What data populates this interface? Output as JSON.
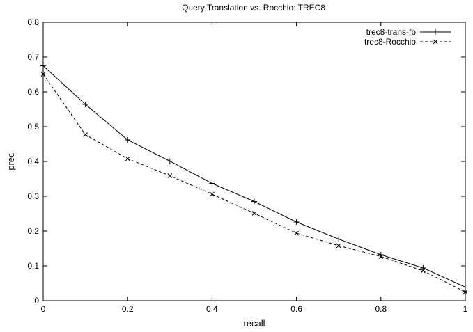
{
  "chart_data": {
    "type": "line",
    "title": "Query Translation vs. Rocchio: TREC8",
    "xlabel": "recall",
    "ylabel": "prec",
    "xlim": [
      0,
      1
    ],
    "ylim": [
      0,
      0.8
    ],
    "x_ticks": [
      "0",
      "0.2",
      "0.4",
      "0.6",
      "0.8",
      "1"
    ],
    "y_ticks": [
      "0",
      "0.1",
      "0.2",
      "0.3",
      "0.4",
      "0.5",
      "0.6",
      "0.7",
      "0.8"
    ],
    "x": [
      0,
      0.1,
      0.2,
      0.3,
      0.4,
      0.5,
      0.6,
      0.7,
      0.8,
      0.9,
      1.0
    ],
    "legend_position": "top-right",
    "grid": false,
    "series": [
      {
        "name": "trec8-trans-fb",
        "line_style": "solid",
        "marker": "plus",
        "values": [
          0.675,
          0.564,
          0.462,
          0.401,
          0.337,
          0.285,
          0.226,
          0.177,
          0.132,
          0.094,
          0.039
        ]
      },
      {
        "name": "trec8-Rocchio",
        "line_style": "dashed",
        "marker": "cross",
        "values": [
          0.651,
          0.477,
          0.408,
          0.359,
          0.306,
          0.251,
          0.194,
          0.158,
          0.127,
          0.086,
          0.025
        ]
      }
    ]
  }
}
